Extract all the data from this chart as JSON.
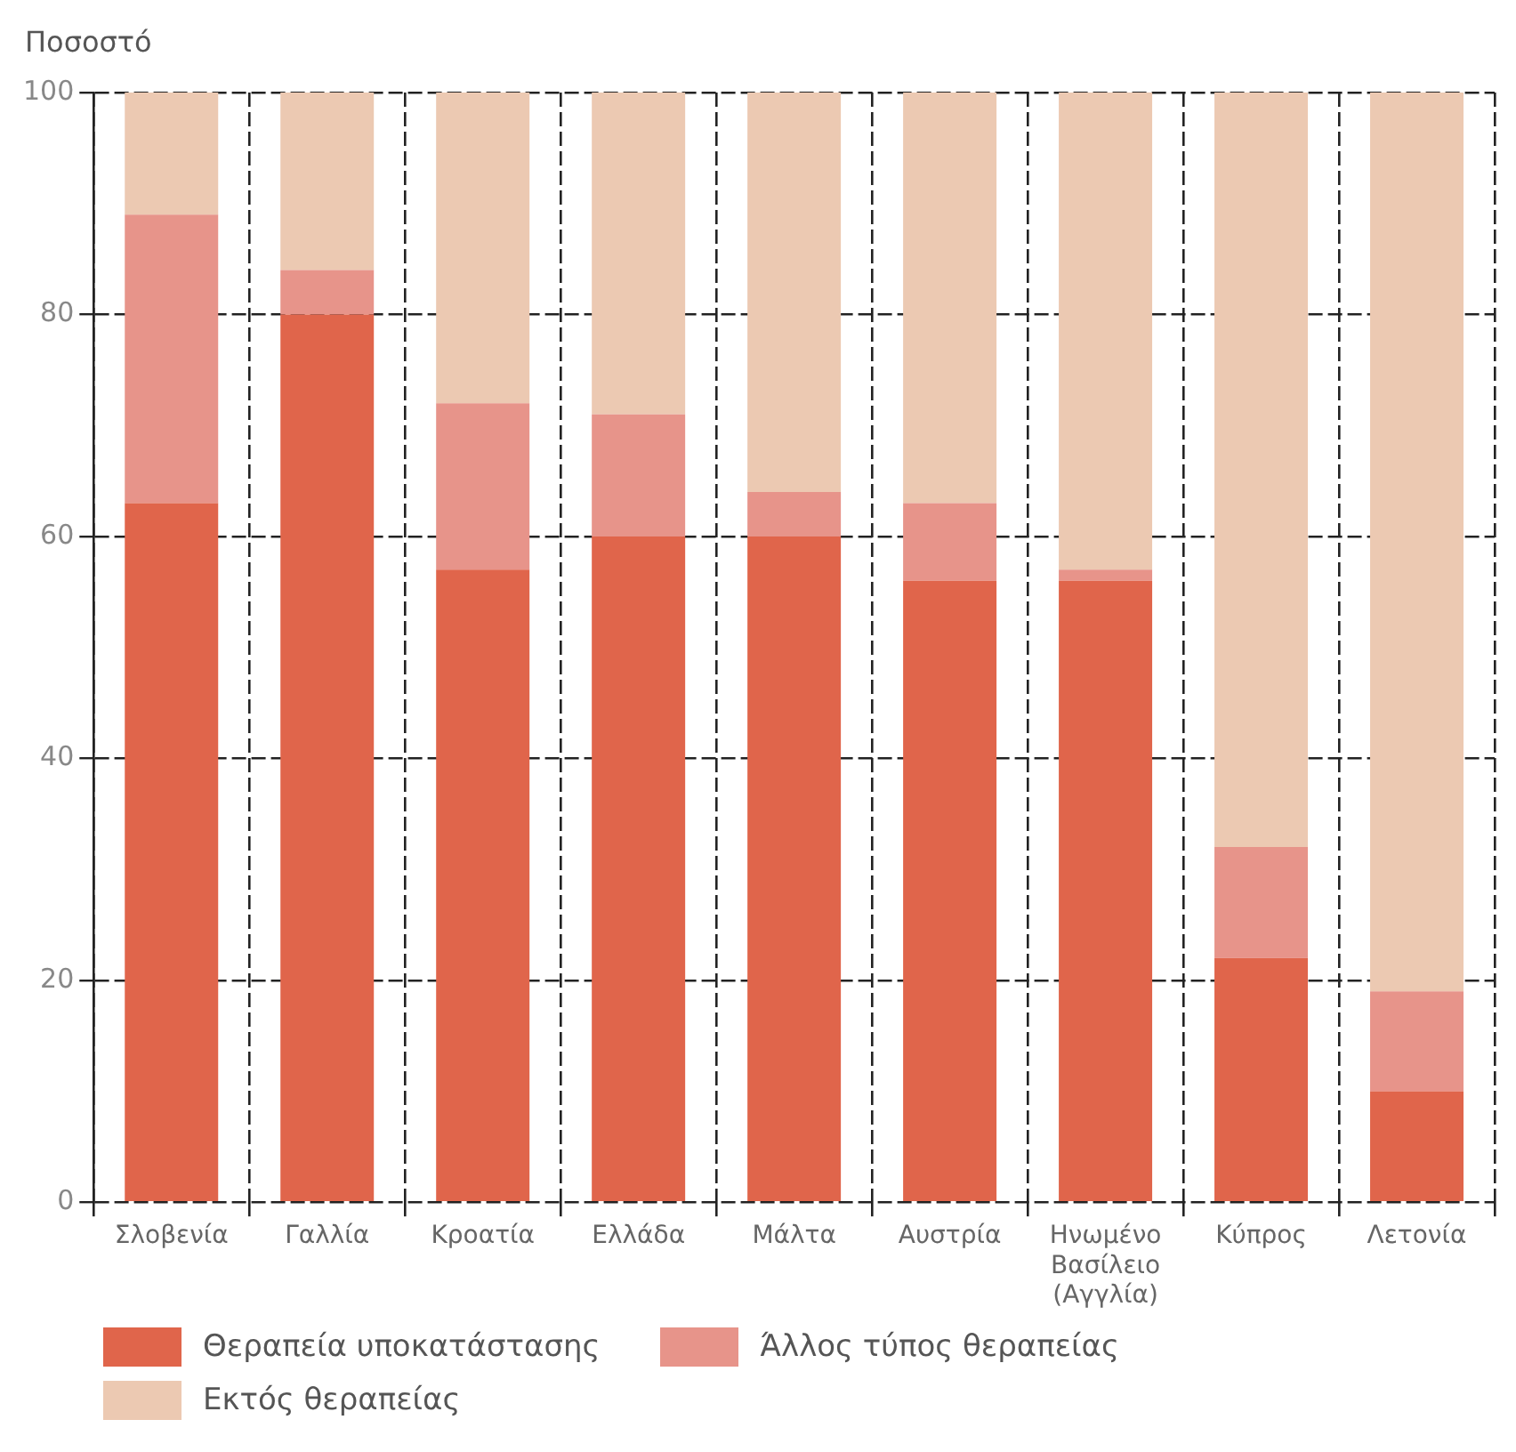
{
  "chart_data": {
    "type": "bar",
    "ylabel": "Ποσοστό",
    "stacked": true,
    "categories": [
      "Σλοβενία",
      "Γαλλία",
      "Κροατία",
      "Ελλάδα",
      "Μάλτα",
      "Αυστρία",
      "Ηνωμένο Βασίλειο (Αγγλία)",
      "Κύπρος",
      "Λετονία"
    ],
    "series": [
      {
        "name": "Θεραπεία υποκατάστασης",
        "color": "#e0654b",
        "values": [
          63,
          80,
          57,
          60,
          60,
          56,
          56,
          22,
          10
        ]
      },
      {
        "name": "Άλλος τύπος θεραπείας",
        "color": "#e7948a",
        "values": [
          26,
          4,
          15,
          11,
          4,
          7,
          1,
          10,
          9
        ]
      },
      {
        "name": "Εκτός θεραπείας",
        "color": "#ecc9b2",
        "values": [
          11,
          16,
          28,
          29,
          36,
          37,
          43,
          68,
          81
        ]
      }
    ],
    "ylim": [
      0,
      100
    ],
    "yticks": [
      0,
      20,
      40,
      60,
      80,
      100
    ],
    "grid": true,
    "legend": "bottom left"
  }
}
